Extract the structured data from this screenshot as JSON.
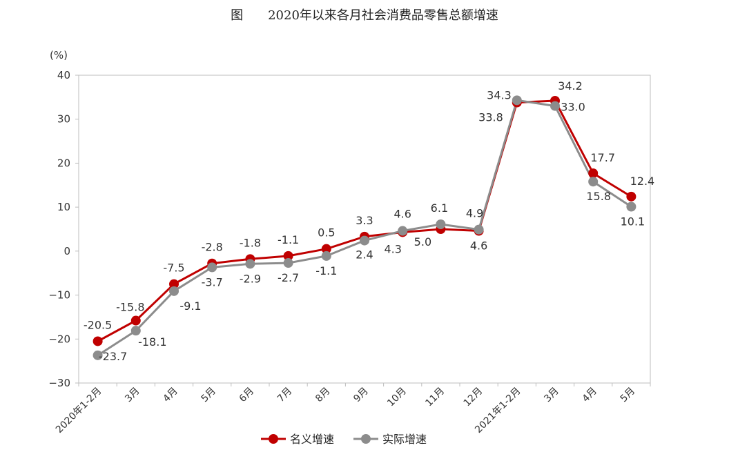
{
  "chart_data": {
    "type": "line",
    "title": "图　　2020年以来各月社会消费品零售总额增速",
    "ylabel": "(%)",
    "ylim": [
      -30,
      40
    ],
    "yticks": [
      -30,
      -20,
      -10,
      0,
      10,
      20,
      30,
      40
    ],
    "ytick_labels": [
      "−30",
      "−20",
      "−10",
      "0",
      "10",
      "20",
      "30",
      "40"
    ],
    "categories": [
      "2020年1-2月",
      "3月",
      "4月",
      "5月",
      "6月",
      "7月",
      "8月",
      "9月",
      "10月",
      "11月",
      "12月",
      "2021年1-2月",
      "3月",
      "4月",
      "5月"
    ],
    "grid": false,
    "legend_position": "bottom",
    "series": [
      {
        "name": "名义增速",
        "color": "#c00000",
        "values": [
          -20.5,
          -15.8,
          -7.5,
          -2.8,
          -1.8,
          -1.1,
          0.5,
          3.3,
          4.3,
          5.0,
          4.6,
          33.8,
          34.2,
          17.7,
          12.4
        ],
        "labels": [
          "-20.5",
          "-15.8",
          "-7.5",
          "-2.8",
          "-1.8",
          "-1.1",
          "0.5",
          "3.3",
          "4.3",
          "5.0",
          "4.6",
          "33.8",
          "34.2",
          "17.7",
          "12.4"
        ]
      },
      {
        "name": "实际增速",
        "color": "#8c8c8c",
        "values": [
          -23.7,
          -18.1,
          -9.1,
          -3.7,
          -2.9,
          -2.7,
          -1.1,
          2.4,
          4.6,
          6.1,
          4.9,
          34.3,
          33.0,
          15.8,
          10.1
        ],
        "labels": [
          "-23.7",
          "-18.1",
          "-9.1",
          "-3.7",
          "-2.9",
          "-2.7",
          "-1.1",
          "2.4",
          "4.6",
          "6.1",
          "4.9",
          "34.3",
          "33.0",
          "15.8",
          "10.1"
        ]
      }
    ]
  }
}
